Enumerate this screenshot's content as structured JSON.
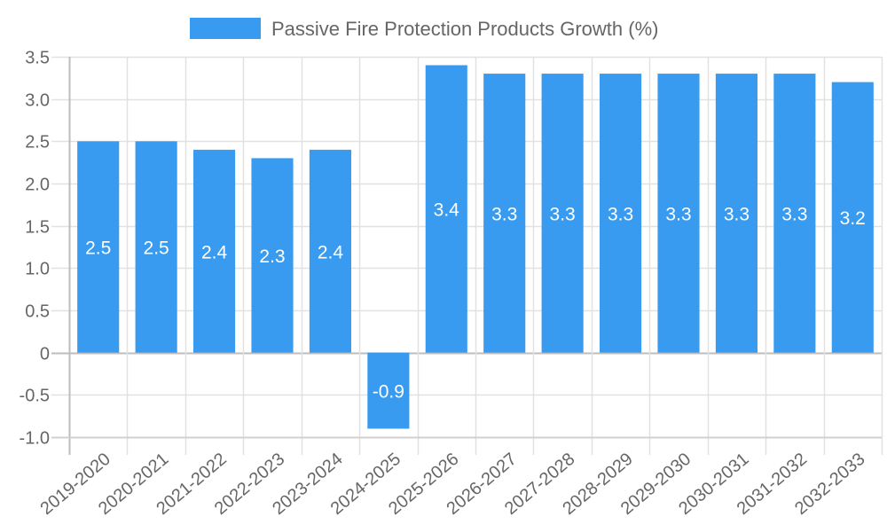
{
  "chart_data": {
    "type": "bar",
    "title": "",
    "legend": {
      "position": "top",
      "entries": [
        {
          "label": "Passive Fire Protection Products Growth (%)",
          "color": "#389BEF"
        }
      ]
    },
    "categories": [
      "2019-2020",
      "2020-2021",
      "2021-2022",
      "2022-2023",
      "2023-2024",
      "2024-2025",
      "2025-2026",
      "2026-2027",
      "2027-2028",
      "2028-2029",
      "2029-2030",
      "2030-2031",
      "2031-2032",
      "2032-2033"
    ],
    "series": [
      {
        "name": "Passive Fire Protection Products Growth (%)",
        "values": [
          2.5,
          2.5,
          2.4,
          2.3,
          2.4,
          -0.9,
          3.4,
          3.3,
          3.3,
          3.3,
          3.3,
          3.3,
          3.3,
          3.2
        ],
        "color": "#389BEF"
      }
    ],
    "data_labels": [
      "2.5",
      "2.5",
      "2.4",
      "2.3",
      "2.4",
      "-0.9",
      "3.4",
      "3.3",
      "3.3",
      "3.3",
      "3.3",
      "3.3",
      "3.3",
      "3.2"
    ],
    "xlabel": "",
    "ylabel": "",
    "ylim": [
      -1.0,
      3.5
    ],
    "yticks": [
      "3.5",
      "3.0",
      "2.5",
      "2.0",
      "1.5",
      "1.0",
      "0.5",
      "0",
      "-0.5",
      "-1.0"
    ],
    "ytick_values": [
      3.5,
      3.0,
      2.5,
      2.0,
      1.5,
      1.0,
      0.5,
      0,
      -0.5,
      -1.0
    ],
    "grid": true,
    "x_label_rotation": -40
  }
}
